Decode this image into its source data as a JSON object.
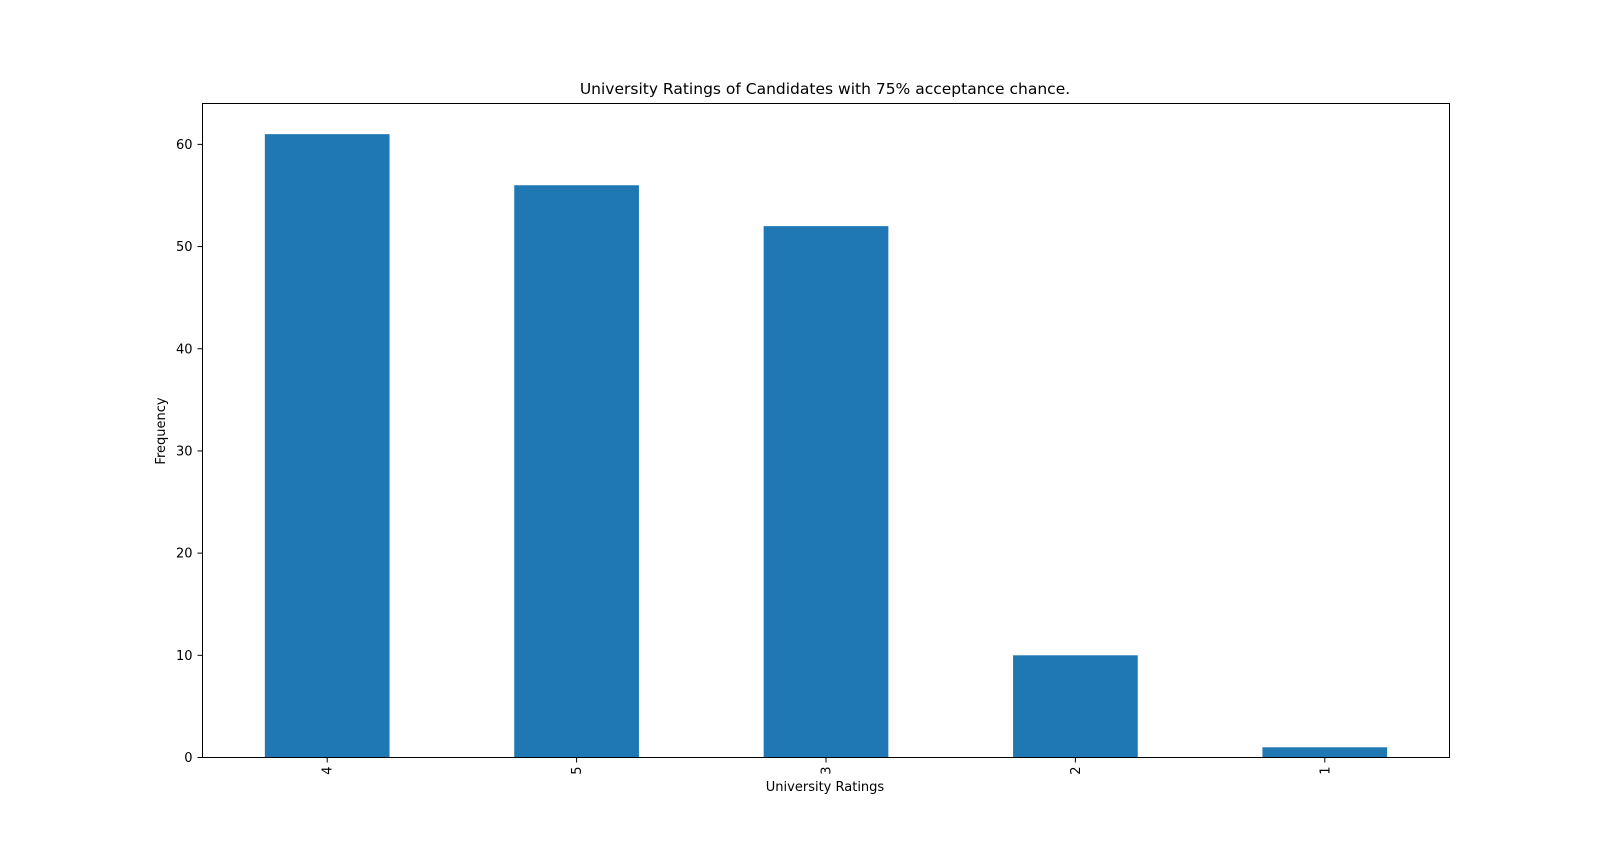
{
  "chart_data": {
    "type": "bar",
    "title": "University Ratings of Candidates with 75% acceptance chance.",
    "xlabel": "University Ratings",
    "ylabel": "Frequency",
    "categories": [
      "4",
      "5",
      "3",
      "2",
      "1"
    ],
    "values": [
      61,
      56,
      52,
      10,
      1
    ],
    "ylim": [
      0,
      64
    ],
    "yticks": [
      0,
      10,
      20,
      30,
      40,
      50,
      60
    ],
    "grid": false,
    "legend": "none",
    "bar_color": "#1f77b4"
  }
}
